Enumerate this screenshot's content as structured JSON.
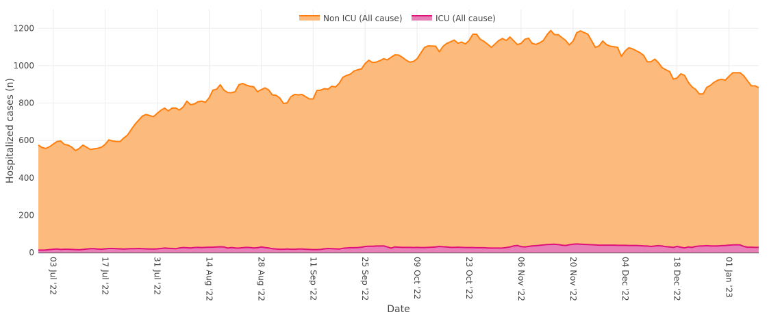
{
  "chart_data": {
    "type": "area",
    "title": "",
    "xlabel": "Date",
    "ylabel": "Hospitalized cases (n)",
    "xlim": [
      "2022-06-29",
      "2023-01-09"
    ],
    "ylim": [
      0,
      1300
    ],
    "yticks": [
      0,
      200,
      400,
      600,
      800,
      1000,
      1200
    ],
    "xticks": [
      {
        "date": "2022-07-03",
        "label": "03 Jul '22"
      },
      {
        "date": "2022-07-17",
        "label": "17 Jul '22"
      },
      {
        "date": "2022-07-31",
        "label": "31 Jul '22"
      },
      {
        "date": "2022-08-14",
        "label": "14 Aug '22"
      },
      {
        "date": "2022-08-28",
        "label": "28 Aug '22"
      },
      {
        "date": "2022-09-11",
        "label": "11 Sep '22"
      },
      {
        "date": "2022-09-25",
        "label": "25 Sep '22"
      },
      {
        "date": "2022-10-09",
        "label": "09 Oct '22"
      },
      {
        "date": "2022-10-23",
        "label": "23 Oct '22"
      },
      {
        "date": "2022-11-06",
        "label": "06 Nov '22"
      },
      {
        "date": "2022-11-20",
        "label": "20 Nov '22"
      },
      {
        "date": "2022-12-04",
        "label": "04 Dec '22"
      },
      {
        "date": "2022-12-18",
        "label": "18 Dec '22"
      },
      {
        "date": "2023-01-01",
        "label": "01 Jan '23"
      }
    ],
    "grid": true,
    "legend_position": "top-center",
    "x": [
      "2022-06-29",
      "2022-06-30",
      "2022-07-01",
      "2022-07-02",
      "2022-07-03",
      "2022-07-04",
      "2022-07-05",
      "2022-07-06",
      "2022-07-07",
      "2022-07-08",
      "2022-07-09",
      "2022-07-10",
      "2022-07-11",
      "2022-07-12",
      "2022-07-13",
      "2022-07-14",
      "2022-07-15",
      "2022-07-16",
      "2022-07-17",
      "2022-07-18",
      "2022-07-19",
      "2022-07-20",
      "2022-07-21",
      "2022-07-22",
      "2022-07-23",
      "2022-07-24",
      "2022-07-25",
      "2022-07-26",
      "2022-07-27",
      "2022-07-28",
      "2022-07-29",
      "2022-07-30",
      "2022-07-31",
      "2022-08-01",
      "2022-08-02",
      "2022-08-03",
      "2022-08-04",
      "2022-08-05",
      "2022-08-06",
      "2022-08-07",
      "2022-08-08",
      "2022-08-09",
      "2022-08-10",
      "2022-08-11",
      "2022-08-12",
      "2022-08-13",
      "2022-08-14",
      "2022-08-15",
      "2022-08-16",
      "2022-08-17",
      "2022-08-18",
      "2022-08-19",
      "2022-08-20",
      "2022-08-21",
      "2022-08-22",
      "2022-08-23",
      "2022-08-24",
      "2022-08-25",
      "2022-08-26",
      "2022-08-27",
      "2022-08-28",
      "2022-08-29",
      "2022-08-30",
      "2022-08-31",
      "2022-09-01",
      "2022-09-02",
      "2022-09-03",
      "2022-09-04",
      "2022-09-05",
      "2022-09-06",
      "2022-09-07",
      "2022-09-08",
      "2022-09-09",
      "2022-09-10",
      "2022-09-11",
      "2022-09-12",
      "2022-09-13",
      "2022-09-14",
      "2022-09-15",
      "2022-09-16",
      "2022-09-17",
      "2022-09-18",
      "2022-09-19",
      "2022-09-20",
      "2022-09-21",
      "2022-09-22",
      "2022-09-23",
      "2022-09-24",
      "2022-09-25",
      "2022-09-26",
      "2022-09-27",
      "2022-09-28",
      "2022-09-29",
      "2022-09-30",
      "2022-10-01",
      "2022-10-02",
      "2022-10-03",
      "2022-10-04",
      "2022-10-05",
      "2022-10-06",
      "2022-10-07",
      "2022-10-08",
      "2022-10-09",
      "2022-10-10",
      "2022-10-11",
      "2022-10-12",
      "2022-10-13",
      "2022-10-14",
      "2022-10-15",
      "2022-10-16",
      "2022-10-17",
      "2022-10-18",
      "2022-10-19",
      "2022-10-20",
      "2022-10-21",
      "2022-10-22",
      "2022-10-23",
      "2022-10-24",
      "2022-10-25",
      "2022-10-26",
      "2022-10-27",
      "2022-10-28",
      "2022-10-29",
      "2022-10-30",
      "2022-10-31",
      "2022-11-01",
      "2022-11-02",
      "2022-11-03",
      "2022-11-04",
      "2022-11-05",
      "2022-11-06",
      "2022-11-07",
      "2022-11-08",
      "2022-11-09",
      "2022-11-10",
      "2022-11-11",
      "2022-11-12",
      "2022-11-13",
      "2022-11-14",
      "2022-11-15",
      "2022-11-16",
      "2022-11-17",
      "2022-11-18",
      "2022-11-19",
      "2022-11-20",
      "2022-11-21",
      "2022-11-22",
      "2022-11-23",
      "2022-11-24",
      "2022-11-25",
      "2022-11-26",
      "2022-11-27",
      "2022-11-28",
      "2022-11-29",
      "2022-11-30",
      "2022-12-01",
      "2022-12-02",
      "2022-12-03",
      "2022-12-04",
      "2022-12-05",
      "2022-12-06",
      "2022-12-07",
      "2022-12-08",
      "2022-12-09",
      "2022-12-10",
      "2022-12-11",
      "2022-12-12",
      "2022-12-13",
      "2022-12-14",
      "2022-12-15",
      "2022-12-16",
      "2022-12-17",
      "2022-12-18",
      "2022-12-19",
      "2022-12-20",
      "2022-12-21",
      "2022-12-22",
      "2022-12-23",
      "2022-12-24",
      "2022-12-25",
      "2022-12-26",
      "2022-12-27",
      "2022-12-28",
      "2022-12-29",
      "2022-12-30",
      "2022-12-31",
      "2023-01-01",
      "2023-01-02",
      "2023-01-03",
      "2023-01-04",
      "2023-01-05",
      "2023-01-06",
      "2023-01-07",
      "2023-01-08",
      "2023-01-09"
    ],
    "series": [
      {
        "name": "Non ICU (All cause)",
        "line_color": "#ff7f0e",
        "fill_color": "#fdba7d",
        "values": [
          575,
          562,
          557,
          566,
          580,
          594,
          597,
          579,
          575,
          564,
          546,
          557,
          575,
          564,
          552,
          555,
          558,
          564,
          579,
          603,
          597,
          594,
          594,
          613,
          628,
          658,
          686,
          708,
          730,
          739,
          733,
          727,
          745,
          761,
          773,
          758,
          773,
          773,
          763,
          779,
          810,
          791,
          795,
          807,
          810,
          804,
          828,
          869,
          874,
          898,
          869,
          856,
          855,
          861,
          898,
          905,
          896,
          890,
          887,
          861,
          871,
          881,
          871,
          844,
          841,
          828,
          798,
          801,
          834,
          846,
          844,
          846,
          834,
          822,
          822,
          867,
          869,
          877,
          874,
          890,
          886,
          905,
          938,
          948,
          954,
          971,
          978,
          983,
          1011,
          1029,
          1017,
          1019,
          1027,
          1037,
          1031,
          1045,
          1058,
          1057,
          1045,
          1030,
          1019,
          1022,
          1037,
          1068,
          1098,
          1106,
          1105,
          1104,
          1074,
          1104,
          1119,
          1128,
          1137,
          1120,
          1126,
          1116,
          1135,
          1168,
          1168,
          1141,
          1130,
          1115,
          1098,
          1116,
          1135,
          1145,
          1135,
          1153,
          1133,
          1113,
          1119,
          1141,
          1147,
          1119,
          1114,
          1122,
          1135,
          1166,
          1188,
          1166,
          1166,
          1150,
          1135,
          1111,
          1131,
          1177,
          1186,
          1177,
          1168,
          1133,
          1098,
          1106,
          1132,
          1113,
          1104,
          1101,
          1098,
          1050,
          1078,
          1096,
          1090,
          1080,
          1070,
          1055,
          1021,
          1021,
          1035,
          1016,
          989,
          978,
          968,
          928,
          934,
          956,
          949,
          912,
          887,
          873,
          849,
          849,
          884,
          895,
          911,
          923,
          927,
          923,
          943,
          962,
          962,
          962,
          945,
          918,
          892,
          892,
          883
        ]
      },
      {
        "name": "ICU (All cause)",
        "line_color": "#e0107a",
        "fill_color": "#e880b8",
        "values": [
          13,
          13,
          14,
          16,
          18,
          19,
          17,
          18,
          18,
          17,
          16,
          15,
          17,
          19,
          21,
          21,
          19,
          18,
          20,
          22,
          22,
          21,
          20,
          19,
          20,
          21,
          21,
          22,
          21,
          20,
          19,
          19,
          20,
          22,
          24,
          23,
          22,
          21,
          25,
          27,
          26,
          25,
          27,
          28,
          27,
          28,
          29,
          29,
          30,
          31,
          30,
          24,
          27,
          25,
          24,
          26,
          28,
          27,
          25,
          26,
          30,
          27,
          25,
          21,
          19,
          18,
          18,
          19,
          18,
          18,
          19,
          19,
          18,
          17,
          16,
          16,
          17,
          20,
          22,
          21,
          20,
          19,
          23,
          25,
          26,
          26,
          27,
          29,
          33,
          34,
          34,
          35,
          35,
          36,
          30,
          24,
          30,
          29,
          28,
          28,
          28,
          27,
          28,
          27,
          27,
          28,
          29,
          30,
          33,
          31,
          30,
          28,
          28,
          29,
          28,
          27,
          27,
          27,
          26,
          26,
          26,
          25,
          24,
          24,
          24,
          25,
          27,
          30,
          36,
          38,
          32,
          30,
          33,
          36,
          37,
          39,
          41,
          43,
          44,
          45,
          43,
          40,
          38,
          42,
          45,
          46,
          45,
          44,
          43,
          42,
          41,
          40,
          40,
          40,
          40,
          40,
          39,
          39,
          39,
          38,
          38,
          38,
          37,
          36,
          35,
          33,
          35,
          37,
          35,
          32,
          30,
          28,
          33,
          29,
          25,
          30,
          28,
          33,
          35,
          36,
          37,
          36,
          35,
          36,
          37,
          38,
          40,
          41,
          42,
          41,
          33,
          29,
          29,
          28,
          28
        ]
      }
    ]
  }
}
